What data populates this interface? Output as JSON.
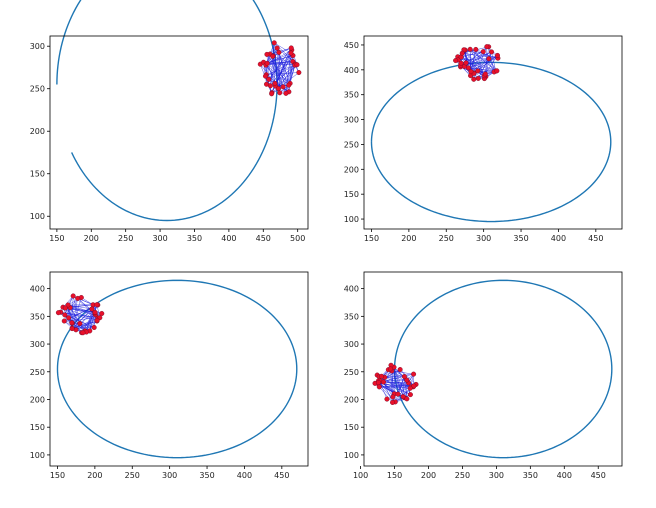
{
  "colors": {
    "trajectory": "#1f77b4",
    "node": "#e8102a",
    "edge": "#1f1fdd",
    "axes": "#000000",
    "background": "#ffffff"
  },
  "chart_data": [
    {
      "type": "line",
      "title": "",
      "xlabel": "",
      "ylabel": "",
      "grid": false,
      "xlim": [
        140,
        515
      ],
      "ylim": [
        85,
        312
      ],
      "xticks": [
        150,
        200,
        250,
        300,
        350,
        400,
        450,
        500
      ],
      "yticks": [
        100,
        150,
        200,
        250,
        300
      ],
      "trajectory": {
        "start": [
          150,
          255
        ],
        "center": [
          310,
          255
        ],
        "rx": 160,
        "ry": 160,
        "end_angle_deg": 330
      },
      "cluster": {
        "center": [
          472,
          273
        ],
        "radius_x": 30,
        "radius_y": 32,
        "node_count": 36
      }
    },
    {
      "type": "line",
      "title": "",
      "xlabel": "",
      "ylabel": "",
      "grid": false,
      "xlim": [
        140,
        485
      ],
      "ylim": [
        80,
        468
      ],
      "xticks": [
        150,
        200,
        250,
        300,
        350,
        400,
        450
      ],
      "yticks": [
        100,
        150,
        200,
        250,
        300,
        350,
        400,
        450
      ],
      "trajectory": {
        "start": [
          150,
          255
        ],
        "center": [
          310,
          255
        ],
        "rx": 160,
        "ry": 160,
        "end_angle_deg": 435
      },
      "cluster": {
        "center": [
          292,
          416
        ],
        "radius_x": 30,
        "radius_y": 36,
        "node_count": 36
      }
    },
    {
      "type": "line",
      "title": "",
      "xlabel": "",
      "ylabel": "",
      "grid": false,
      "xlim": [
        140,
        485
      ],
      "ylim": [
        80,
        430
      ],
      "xticks": [
        150,
        200,
        250,
        300,
        350,
        400,
        450
      ],
      "yticks": [
        100,
        150,
        200,
        250,
        300,
        350,
        400
      ],
      "trajectory": {
        "start": [
          150,
          255
        ],
        "center": [
          310,
          255
        ],
        "rx": 160,
        "ry": 160,
        "end_angle_deg": 515
      },
      "cluster": {
        "center": [
          180,
          356
        ],
        "radius_x": 30,
        "radius_y": 36,
        "node_count": 36
      }
    },
    {
      "type": "line",
      "title": "",
      "xlabel": "",
      "ylabel": "",
      "grid": false,
      "xlim": [
        105,
        485
      ],
      "ylim": [
        80,
        430
      ],
      "xticks": [
        100,
        150,
        200,
        250,
        300,
        350,
        400,
        450
      ],
      "yticks": [
        100,
        150,
        200,
        250,
        300,
        350,
        400
      ],
      "trajectory": {
        "start": [
          150,
          255
        ],
        "center": [
          310,
          255
        ],
        "rx": 160,
        "ry": 160,
        "end_angle_deg": 545
      },
      "cluster": {
        "center": [
          152,
          230
        ],
        "radius_x": 32,
        "radius_y": 36,
        "node_count": 36
      }
    }
  ]
}
